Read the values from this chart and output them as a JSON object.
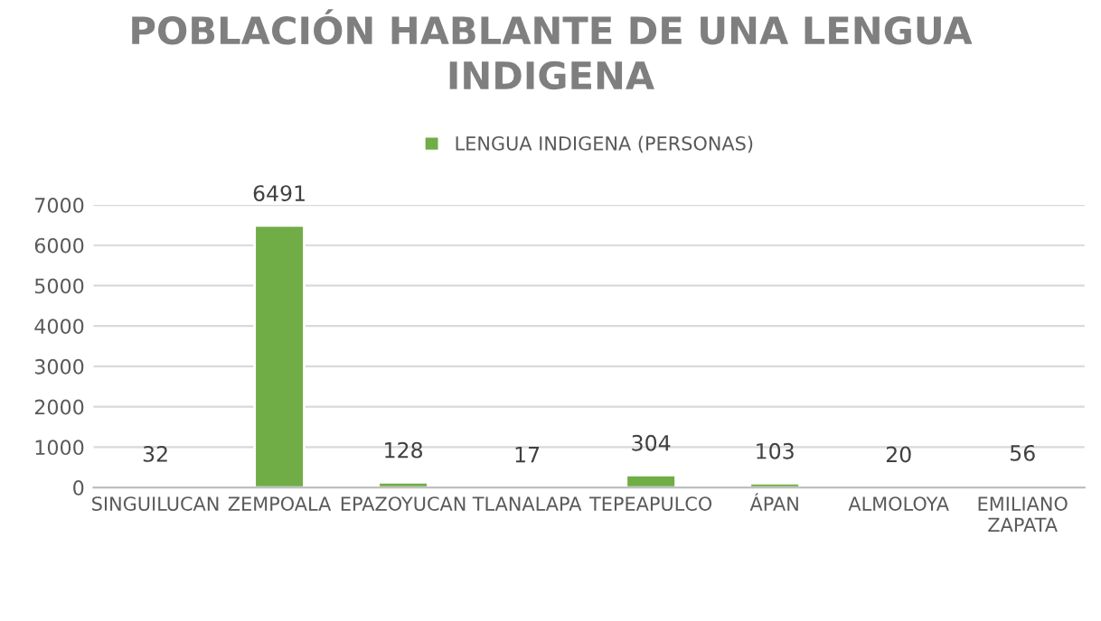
{
  "chart_data": {
    "type": "bar",
    "title": "POBLACIÓN HABLANTE DE UNA LENGUA\nINDIGENA",
    "categories": [
      "SINGUILUCAN",
      "ZEMPOALA",
      "EPAZOYUCAN",
      "TLANALAPA",
      "TEPEAPULCO",
      "ÁPAN",
      "ALMOLOYA",
      "EMILIANO\nZAPATA"
    ],
    "series": [
      {
        "name": "LENGUA INDIGENA (PERSONAS)",
        "color": "#70ad47",
        "values": [
          32,
          6491,
          128,
          17,
          304,
          103,
          20,
          56
        ]
      }
    ],
    "ylim": [
      0,
      7000
    ],
    "yticks": [
      0,
      1000,
      2000,
      3000,
      4000,
      5000,
      6000,
      7000
    ],
    "grid": "y",
    "legend": "top",
    "data_labels": true
  }
}
